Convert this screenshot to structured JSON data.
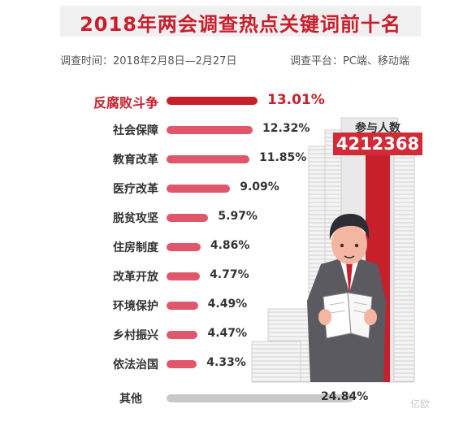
{
  "title": "2018年两会调查热点关键词前十名",
  "survey_time": "调查时间：2018年2月8日—2月27日",
  "survey_platform": "调查平台：PC端、移动端",
  "participants": {
    "label": "参与人数",
    "count": "4212368"
  },
  "watermark": "亿欧",
  "colors": {
    "accent": "#c81f2d",
    "bar_main": "#e0566a",
    "bar_other": "#c8c8c8"
  },
  "chart_data": {
    "type": "bar",
    "orientation": "horizontal",
    "categories": [
      "反腐败斗争",
      "社会保障",
      "教育改革",
      "医疗改革",
      "脱贫攻坚",
      "住房制度",
      "改革开放",
      "环境保护",
      "乡村振兴",
      "依法治国",
      "其他"
    ],
    "values": [
      13.01,
      12.32,
      11.85,
      9.09,
      5.97,
      4.86,
      4.77,
      4.49,
      4.47,
      4.33,
      24.84
    ],
    "value_labels": [
      "13.01%",
      "12.32%",
      "11.85%",
      "9.09%",
      "5.97%",
      "4.86%",
      "4.77%",
      "4.49%",
      "4.47%",
      "4.33%",
      "24.84%"
    ],
    "unit": "%"
  }
}
